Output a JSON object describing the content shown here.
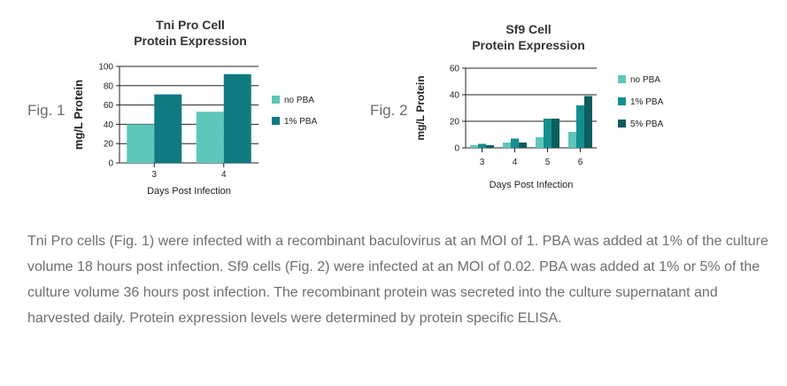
{
  "figures": [
    {
      "label": "Fig. 1",
      "chart_data": {
        "type": "bar",
        "title": [
          "Tni Pro Cell",
          "Protein Expression"
        ],
        "xlabel": "Days Post Infection",
        "ylabel": "mg/L Protein",
        "categories": [
          "3",
          "4"
        ],
        "ylim": [
          0,
          100
        ],
        "yticks": [
          0,
          20,
          40,
          60,
          80,
          100
        ],
        "grid": true,
        "legend": "right",
        "series": [
          {
            "name": "no PBA",
            "color": "#5ec6bb",
            "values": [
              40,
              53
            ]
          },
          {
            "name": "1% PBA",
            "color": "#0f7b80",
            "values": [
              71,
              92
            ]
          }
        ]
      }
    },
    {
      "label": "Fig. 2",
      "chart_data": {
        "type": "bar",
        "title": [
          "Sf9 Cell",
          "Protein Expression"
        ],
        "xlabel": "Days Post Infection",
        "ylabel": "mg/L Protein",
        "categories": [
          "3",
          "4",
          "5",
          "6"
        ],
        "ylim": [
          0,
          60
        ],
        "yticks": [
          0,
          20,
          40,
          60
        ],
        "grid": true,
        "legend": "right",
        "series": [
          {
            "name": "no PBA",
            "color": "#5ec6bb",
            "values": [
              2,
              4,
              8,
              12
            ]
          },
          {
            "name": "1% PBA",
            "color": "#148f8f",
            "values": [
              3,
              7,
              22,
              32
            ]
          },
          {
            "name": "5% PBA",
            "color": "#0d5e5e",
            "values": [
              2,
              4,
              22,
              39
            ]
          }
        ]
      }
    }
  ],
  "caption": "Tni Pro cells (Fig. 1) were infected with a recombinant baculovirus at an MOI of 1. PBA was added at 1% of the culture volume 18 hours post infection. Sf9 cells (Fig. 2) were infected at an MOI of 0.02. PBA was added at 1% or 5% of the culture volume 36 hours post infection. The recombinant protein was secreted into the culture supernatant and harvested daily. Protein expression levels were determined by protein specific ELISA."
}
